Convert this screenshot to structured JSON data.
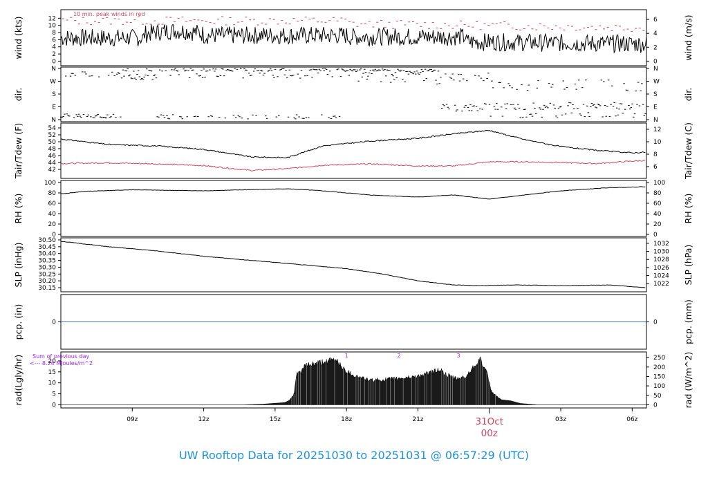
{
  "title": "UW Rooftop Data for 20251030  to  20251031 @ 06:57:29  (UTC)",
  "colors": {
    "axis": "#000000",
    "secondary_series": "#d2435f",
    "precip_line": "#3f6fb5",
    "annotation": "#a020f0",
    "title": "#1e90d8",
    "date_label": "#d2435f"
  },
  "x_axis": {
    "unit": "hours since 06z 20251030",
    "range": [
      0,
      24.6
    ],
    "ticks": [
      {
        "x": 3,
        "label": "09z"
      },
      {
        "x": 6,
        "label": "12z"
      },
      {
        "x": 9,
        "label": "15z"
      },
      {
        "x": 12,
        "label": "18z"
      },
      {
        "x": 15,
        "label": "21z"
      },
      {
        "x": 21,
        "label": "03z"
      },
      {
        "x": 24,
        "label": "06z"
      }
    ],
    "date_tick": {
      "x": 18,
      "date": "31Oct",
      "label": "00z"
    }
  },
  "chart_data": [
    {
      "type": "line",
      "id": "wind",
      "ylabel": "wind (kts)",
      "ylabel_right": "wind (m/s)",
      "ylim": [
        -0.5,
        14
      ],
      "yticks": [
        0,
        2,
        4,
        6,
        8,
        10,
        12
      ],
      "yticks_right": [
        0,
        2,
        4,
        6
      ],
      "annotation": "10 min. peak winds in red",
      "series": [
        {
          "values_approx": {
            "start": 6.5,
            "peak_near_x5": 8.5,
            "mid": 7,
            "end": 5
          }
        },
        {
          "values_approx": {
            "start": 11,
            "mid": 11.5,
            "end": 9.5
          }
        }
      ]
    },
    {
      "type": "scatter",
      "id": "dir",
      "ylabel": "dir.",
      "ylabel_right": "dir.",
      "yticks": [
        "N",
        "E",
        "S",
        "W",
        "N"
      ]
    },
    {
      "type": "line",
      "id": "temp",
      "ylabel": "Tair/Tdew (F)",
      "ylabel_right": "Tair/Tdew (C)",
      "ylim": [
        40.8,
        54.6
      ],
      "yticks": [
        42,
        44,
        46,
        48,
        50,
        52,
        54
      ],
      "yticks_right": [
        6,
        8,
        10,
        12
      ],
      "series": [
        {
          "x": [
            0,
            2,
            4,
            6,
            8,
            9.5,
            11,
            13,
            15,
            16.5,
            18,
            19.5,
            21,
            22.5,
            24,
            24.6
          ],
          "values": [
            50.8,
            49.2,
            48.8,
            47.8,
            45.6,
            45.4,
            48.8,
            50.2,
            51.0,
            52.3,
            53.3,
            50.6,
            48.6,
            47.5,
            46.8,
            47.0
          ]
        },
        {
          "x": [
            0,
            2,
            4,
            6,
            8,
            9.5,
            11,
            13,
            15,
            16.5,
            18,
            19.5,
            21,
            22.5,
            24,
            24.6
          ],
          "values": [
            43.7,
            43.9,
            43.6,
            43.1,
            41.7,
            42.2,
            43.2,
            43.6,
            43.0,
            43.0,
            44.2,
            44.2,
            44.0,
            43.7,
            44.4,
            44.6
          ]
        }
      ]
    },
    {
      "type": "line",
      "id": "rh",
      "ylabel": "RH (%)",
      "ylabel_right": "RH (%)",
      "ylim": [
        0,
        100
      ],
      "yticks": [
        0,
        20,
        40,
        60,
        80,
        100
      ],
      "yticks_right": [
        0,
        20,
        40,
        60,
        80,
        100
      ],
      "series": [
        {
          "x": [
            0,
            1,
            3,
            6,
            9.5,
            11,
            13,
            15,
            16.5,
            18,
            19.5,
            21,
            23,
            24.6
          ],
          "values": [
            78,
            83,
            86,
            84,
            88,
            84,
            76,
            72,
            76,
            68,
            76,
            84,
            90,
            92
          ]
        }
      ]
    },
    {
      "type": "line",
      "id": "slp",
      "ylabel": "SLP (inHg)",
      "ylabel_right": "SLP (hPa)",
      "ylim": [
        30.13,
        30.51
      ],
      "yticks": [
        30.15,
        30.2,
        30.25,
        30.3,
        30.35,
        30.4,
        30.45,
        30.5
      ],
      "yticks_right": [
        1022,
        1024,
        1026,
        1028,
        1030,
        1032
      ],
      "series": [
        {
          "x": [
            0,
            2,
            4,
            6,
            8,
            10,
            12,
            13.5,
            15,
            16.5,
            17.5,
            19,
            21,
            23,
            24.6
          ],
          "values": [
            30.49,
            30.45,
            30.42,
            30.38,
            30.35,
            30.32,
            30.29,
            30.25,
            30.2,
            30.17,
            30.165,
            30.17,
            30.165,
            30.17,
            30.15
          ]
        }
      ]
    },
    {
      "type": "line",
      "id": "pcp",
      "ylabel": "pcp. (in)",
      "ylabel_right": "pcp. (mm)",
      "ylim": [
        -1,
        1
      ],
      "yticks": [
        0
      ],
      "yticks_right": [
        0
      ],
      "series": [
        {
          "x": [
            0,
            24.6
          ],
          "values": [
            0,
            0
          ]
        }
      ]
    },
    {
      "type": "area",
      "id": "rad",
      "ylabel": "rad(Lgly/hr)",
      "ylabel_right": "rad (W/m^2)",
      "ylim": [
        -0.5,
        22.5
      ],
      "yticks": [
        0,
        5,
        10,
        15,
        20
      ],
      "yticks_right": [
        0,
        50,
        100,
        150,
        200,
        250
      ],
      "annotation_lines": [
        "Sum of previous day",
        "<--- 8.24 MJoules/m^2"
      ],
      "hour_marks": [
        {
          "x": 12,
          "label": "1"
        },
        {
          "x": 14.2,
          "label": "2"
        },
        {
          "x": 16.7,
          "label": "3"
        }
      ],
      "series": [
        {
          "x": [
            0,
            7.7,
            8.5,
            9.4,
            9.6,
            9.8,
            9.9,
            10.3,
            10.8,
            11.2,
            11.6,
            11.9,
            12.4,
            13,
            14,
            15.0,
            15.5,
            15.9,
            16.2,
            16.6,
            17.0,
            17.4,
            17.6,
            17.9,
            18.1,
            18.5,
            18.9,
            19.3,
            20,
            24.6
          ],
          "values": [
            0,
            0,
            0.3,
            1.0,
            2.0,
            5,
            14,
            18.5,
            19.5,
            20.5,
            21.2,
            16.5,
            13.5,
            11.5,
            12.2,
            13.5,
            15.0,
            16.8,
            14.0,
            12.3,
            13.0,
            19.0,
            22.0,
            14.5,
            6.0,
            2.3,
            1.8,
            0.6,
            0,
            0
          ]
        }
      ]
    }
  ]
}
